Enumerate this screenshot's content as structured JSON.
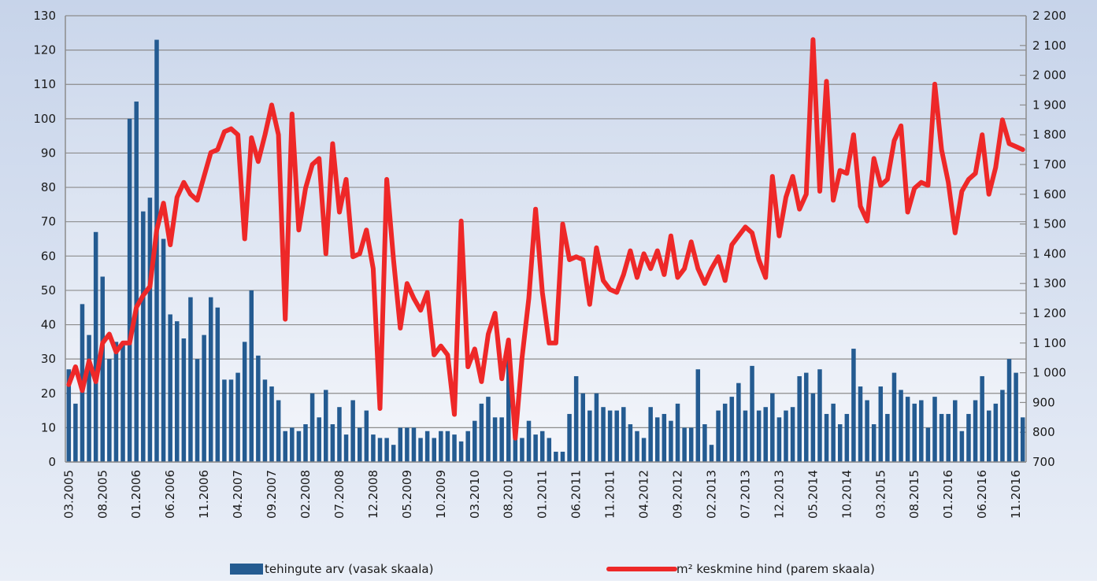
{
  "chart_data": {
    "type": "bar-line",
    "categories": [
      "03.2005",
      null,
      null,
      null,
      null,
      "08.2005",
      null,
      null,
      null,
      null,
      "01.2006",
      null,
      null,
      null,
      null,
      "06.2006",
      null,
      null,
      null,
      null,
      "11.2006",
      null,
      null,
      null,
      null,
      "04.2007",
      null,
      null,
      null,
      null,
      "09.2007",
      null,
      null,
      null,
      null,
      "02.2008",
      null,
      null,
      null,
      null,
      "07.2008",
      null,
      null,
      null,
      null,
      "12.2008",
      null,
      null,
      null,
      null,
      "05.2009",
      null,
      null,
      null,
      null,
      "10.2009",
      null,
      null,
      null,
      null,
      "03.2010",
      null,
      null,
      null,
      null,
      "08.2010",
      null,
      null,
      null,
      null,
      "01.2011",
      null,
      null,
      null,
      null,
      "06.2011",
      null,
      null,
      null,
      null,
      "11.2011",
      null,
      null,
      null,
      null,
      "04.2012",
      null,
      null,
      null,
      null,
      "09.2012",
      null,
      null,
      null,
      null,
      "02.2013",
      null,
      null,
      null,
      null,
      "07.2013",
      null,
      null,
      null,
      null,
      "12.2013",
      null,
      null,
      null,
      null,
      "05.2014",
      null,
      null,
      null,
      null,
      "10.2014",
      null,
      null,
      null,
      null,
      "03.2015",
      null,
      null,
      null,
      null,
      "08.2015",
      null,
      null,
      null,
      null,
      "01.2016",
      null,
      null,
      null,
      null,
      "06.2016",
      null,
      null,
      null,
      null,
      "11.2016",
      null
    ],
    "series": [
      {
        "name": "tehingute arv (vasak skaala)",
        "color": "#245b91",
        "type": "bar",
        "axis": "y",
        "values": [
          27,
          17,
          46,
          37,
          67,
          54,
          30,
          35,
          35,
          100,
          105,
          73,
          77,
          123,
          65,
          43,
          41,
          36,
          48,
          30,
          37,
          48,
          45,
          24,
          24,
          26,
          35,
          50,
          31,
          24,
          22,
          18,
          9,
          10,
          9,
          11,
          20,
          13,
          21,
          11,
          16,
          8,
          18,
          10,
          15,
          8,
          7,
          7,
          5,
          10,
          10,
          10,
          7,
          9,
          7,
          9,
          9,
          8,
          6,
          9,
          12,
          17,
          19,
          13,
          13,
          34,
          7,
          7,
          12,
          8,
          9,
          7,
          3,
          3,
          14,
          25,
          20,
          15,
          20,
          16,
          15,
          15,
          16,
          11,
          9,
          7,
          16,
          13,
          14,
          12,
          17,
          10,
          10,
          27,
          11,
          5,
          15,
          17,
          19,
          23,
          15,
          28,
          15,
          16,
          20,
          13,
          15,
          16,
          25,
          26,
          20,
          27,
          14,
          17,
          11,
          14,
          33,
          22,
          18,
          11,
          22,
          14,
          26,
          21,
          19,
          17,
          18,
          10,
          19,
          14,
          14,
          18,
          9,
          14,
          18,
          25,
          15,
          17,
          21,
          30,
          26,
          13
        ]
      },
      {
        "name": "m² keskmine hind (parem skaala)",
        "color": "#ee2828",
        "type": "line",
        "axis": "y2",
        "values": [
          960,
          1020,
          940,
          1040,
          970,
          1100,
          1130,
          1070,
          1100,
          1100,
          1220,
          1260,
          1290,
          1480,
          1570,
          1430,
          1590,
          1640,
          1600,
          1580,
          1660,
          1740,
          1750,
          1810,
          1820,
          1800,
          1450,
          1790,
          1710,
          1800,
          1900,
          1800,
          1180,
          1870,
          1480,
          1620,
          1700,
          1720,
          1400,
          1770,
          1540,
          1650,
          1390,
          1400,
          1480,
          1350,
          880,
          1650,
          1380,
          1150,
          1300,
          1250,
          1210,
          1270,
          1060,
          1090,
          1060,
          860,
          1510,
          1020,
          1080,
          970,
          1130,
          1200,
          980,
          1110,
          780,
          1050,
          1250,
          1550,
          1270,
          1100,
          1100,
          1500,
          1380,
          1390,
          1380,
          1230,
          1420,
          1310,
          1280,
          1270,
          1330,
          1410,
          1320,
          1400,
          1350,
          1410,
          1330,
          1460,
          1320,
          1350,
          1440,
          1350,
          1300,
          1350,
          1390,
          1310,
          1430,
          1460,
          1490,
          1470,
          1380,
          1320,
          1660,
          1460,
          1590,
          1660,
          1550,
          1600,
          2120,
          1610,
          1980,
          1580,
          1680,
          1670,
          1800,
          1560,
          1510,
          1720,
          1630,
          1650,
          1780,
          1830,
          1540,
          1620,
          1640,
          1630,
          1970,
          1750,
          1640,
          1470,
          1610,
          1650,
          1670,
          1800,
          1600,
          1690,
          1850,
          1770,
          1760,
          1750
        ]
      }
    ],
    "ylim": [
      0,
      130
    ],
    "yticks": [
      0,
      10,
      20,
      30,
      40,
      50,
      60,
      70,
      80,
      90,
      100,
      110,
      120,
      130
    ],
    "y2lim": [
      700,
      2200
    ],
    "y2ticks": [
      700,
      800,
      900,
      {
        "value": 1000,
        "label": "1 000"
      },
      {
        "value": 1100,
        "label": "1 100"
      },
      {
        "value": 1200,
        "label": "1 200"
      },
      {
        "value": 1300,
        "label": "1 300"
      },
      {
        "value": 1400,
        "label": "1 400"
      },
      {
        "value": 1500,
        "label": "1 500"
      },
      {
        "value": 1600,
        "label": "1 600"
      },
      {
        "value": 1700,
        "label": "1 700"
      },
      {
        "value": 1800,
        "label": "1 800"
      },
      {
        "value": 1900,
        "label": "1 900"
      },
      {
        "value": 2000,
        "label": "2 000"
      },
      {
        "value": 2100,
        "label": "2 100"
      },
      {
        "value": 2200,
        "label": "2 200"
      }
    ],
    "grid": true,
    "legend": "bottom"
  }
}
